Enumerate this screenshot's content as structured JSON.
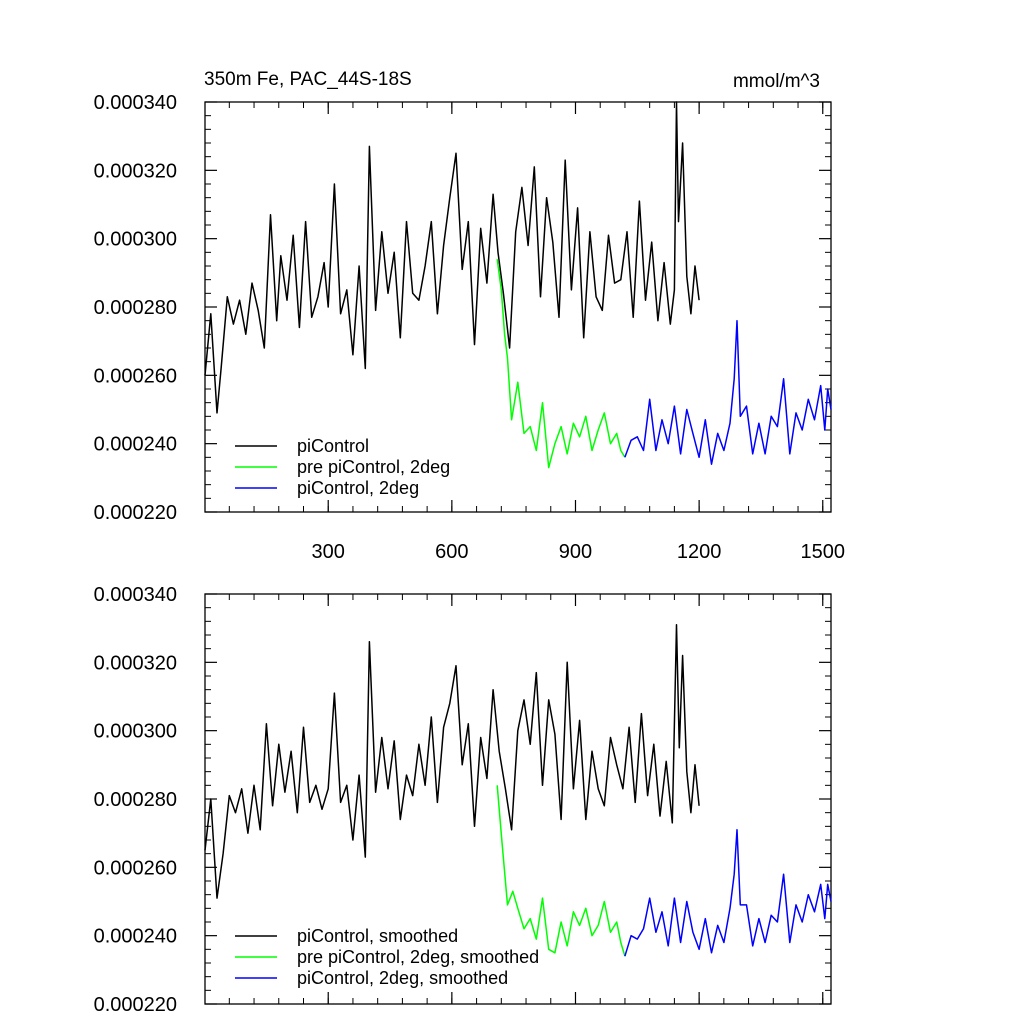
{
  "chart_data": [
    {
      "type": "line",
      "title": "350m Fe, PAC_44S-18S",
      "units": "mmol/m^3",
      "xlabel": "",
      "ylabel": "",
      "xlim": [
        1,
        1520
      ],
      "ylim": [
        0.00022,
        0.00034
      ],
      "x_ticks": [
        300,
        600,
        900,
        1200,
        1500
      ],
      "x_tick_labels": [
        "300",
        "600",
        "900",
        "1200",
        "1500"
      ],
      "y_ticks": [
        0.00022,
        0.00024,
        0.00026,
        0.00028,
        0.0003,
        0.00032,
        0.00034
      ],
      "y_tick_labels": [
        "0.000220",
        "0.000240",
        "0.000260",
        "0.000280",
        "0.000300",
        "0.000320",
        "0.000340"
      ],
      "legend_position": "bottom-left",
      "series": [
        {
          "name": "piControl",
          "color": "#000000",
          "x": [
            1,
            15,
            30,
            40,
            55,
            70,
            85,
            100,
            115,
            130,
            145,
            160,
            175,
            185,
            200,
            215,
            230,
            245,
            260,
            275,
            290,
            300,
            315,
            330,
            345,
            360,
            375,
            390,
            400,
            415,
            430,
            445,
            460,
            475,
            490,
            505,
            520,
            535,
            550,
            565,
            580,
            595,
            610,
            625,
            640,
            655,
            670,
            685,
            700,
            712,
            725,
            740,
            755,
            770,
            785,
            800,
            815,
            830,
            845,
            860,
            875,
            890,
            905,
            920,
            935,
            950,
            965,
            980,
            995,
            1010,
            1025,
            1040,
            1055,
            1070,
            1085,
            1100,
            1115,
            1130,
            1140,
            1145,
            1150,
            1160,
            1170,
            1180,
            1190,
            1200
          ],
          "y": [
            0.00026,
            0.000278,
            0.000249,
            0.000262,
            0.000283,
            0.000275,
            0.000282,
            0.000272,
            0.000287,
            0.000279,
            0.000268,
            0.000307,
            0.000276,
            0.000295,
            0.000282,
            0.000301,
            0.000274,
            0.000305,
            0.000277,
            0.000283,
            0.000293,
            0.00028,
            0.000316,
            0.000278,
            0.000285,
            0.000266,
            0.000292,
            0.000262,
            0.000327,
            0.000279,
            0.000302,
            0.000284,
            0.000296,
            0.000271,
            0.000305,
            0.000284,
            0.000282,
            0.000292,
            0.000305,
            0.000278,
            0.000298,
            0.000312,
            0.000325,
            0.000291,
            0.000305,
            0.000269,
            0.000303,
            0.000287,
            0.000313,
            0.000296,
            0.000284,
            0.000268,
            0.000302,
            0.000315,
            0.000298,
            0.000321,
            0.000283,
            0.000312,
            0.000299,
            0.000277,
            0.000323,
            0.000285,
            0.000309,
            0.000271,
            0.000302,
            0.000283,
            0.000279,
            0.000301,
            0.000287,
            0.000288,
            0.000302,
            0.000277,
            0.000311,
            0.000282,
            0.000299,
            0.000276,
            0.000293,
            0.000275,
            0.000285,
            0.00034,
            0.000305,
            0.000328,
            0.000289,
            0.000278,
            0.000292,
            0.000282
          ]
        },
        {
          "name": "pre piControl, 2deg",
          "color": "#00ff00",
          "x": [
            710,
            720,
            728,
            735,
            745,
            760,
            775,
            790,
            805,
            820,
            835,
            850,
            865,
            880,
            895,
            910,
            925,
            940,
            955,
            970,
            985,
            1000,
            1010,
            1020
          ],
          "y": [
            0.000294,
            0.000285,
            0.000272,
            0.000265,
            0.000247,
            0.000258,
            0.000243,
            0.000245,
            0.000238,
            0.000252,
            0.000233,
            0.00024,
            0.000245,
            0.000237,
            0.000246,
            0.000242,
            0.000248,
            0.000238,
            0.000244,
            0.000249,
            0.00024,
            0.000243,
            0.000238,
            0.000236
          ]
        },
        {
          "name": "piControl, 2deg",
          "color": "#0000ff",
          "x": [
            1020,
            1035,
            1050,
            1065,
            1080,
            1095,
            1110,
            1125,
            1140,
            1155,
            1170,
            1185,
            1200,
            1215,
            1230,
            1245,
            1260,
            1275,
            1285,
            1292,
            1300,
            1315,
            1330,
            1345,
            1360,
            1375,
            1390,
            1405,
            1420,
            1435,
            1450,
            1465,
            1480,
            1495,
            1505,
            1512,
            1520
          ],
          "y": [
            0.000236,
            0.000241,
            0.000242,
            0.000238,
            0.000253,
            0.000238,
            0.000247,
            0.00024,
            0.000251,
            0.000237,
            0.00025,
            0.000243,
            0.000236,
            0.000247,
            0.000234,
            0.000243,
            0.000238,
            0.000246,
            0.000259,
            0.000276,
            0.000248,
            0.000251,
            0.000237,
            0.000246,
            0.000237,
            0.000248,
            0.000245,
            0.000259,
            0.000237,
            0.000249,
            0.000244,
            0.000253,
            0.000247,
            0.000257,
            0.000244,
            0.000256,
            0.00025
          ]
        }
      ]
    },
    {
      "type": "line",
      "title": "",
      "xlabel": "",
      "ylabel": "",
      "xlim": [
        1,
        1520
      ],
      "ylim": [
        0.00022,
        0.00034
      ],
      "x_ticks": [
        300,
        600,
        900,
        1200,
        1500
      ],
      "x_tick_labels": [],
      "y_ticks": [
        0.00022,
        0.00024,
        0.00026,
        0.00028,
        0.0003,
        0.00032,
        0.00034
      ],
      "y_tick_labels": [
        "0.000220",
        "0.000240",
        "0.000260",
        "0.000280",
        "0.000300",
        "0.000320",
        "0.000340"
      ],
      "legend_position": "bottom-left",
      "series": [
        {
          "name": "piControl, smoothed",
          "color": "#000000",
          "x": [
            1,
            15,
            30,
            45,
            60,
            75,
            90,
            105,
            120,
            135,
            150,
            165,
            180,
            195,
            210,
            225,
            240,
            255,
            270,
            285,
            300,
            315,
            330,
            345,
            360,
            375,
            390,
            400,
            415,
            430,
            445,
            460,
            475,
            490,
            505,
            520,
            535,
            550,
            565,
            580,
            595,
            610,
            625,
            640,
            655,
            670,
            685,
            700,
            715,
            730,
            745,
            760,
            775,
            790,
            805,
            820,
            835,
            850,
            865,
            880,
            895,
            910,
            925,
            940,
            955,
            970,
            985,
            1000,
            1015,
            1030,
            1045,
            1060,
            1075,
            1090,
            1105,
            1120,
            1135,
            1145,
            1152,
            1160,
            1170,
            1180,
            1190,
            1200
          ],
          "y": [
            0.000265,
            0.00028,
            0.000251,
            0.000264,
            0.000281,
            0.000276,
            0.000283,
            0.00027,
            0.000284,
            0.000271,
            0.000302,
            0.000278,
            0.000296,
            0.000282,
            0.000294,
            0.000276,
            0.000301,
            0.000279,
            0.000284,
            0.000277,
            0.000283,
            0.000311,
            0.000279,
            0.000284,
            0.000268,
            0.000287,
            0.000263,
            0.000326,
            0.000282,
            0.000298,
            0.000283,
            0.000297,
            0.000274,
            0.000287,
            0.000281,
            0.000296,
            0.000284,
            0.000304,
            0.000279,
            0.000301,
            0.000308,
            0.000319,
            0.00029,
            0.000302,
            0.000272,
            0.000298,
            0.000286,
            0.000312,
            0.000294,
            0.000283,
            0.000271,
            0.0003,
            0.000309,
            0.000296,
            0.000317,
            0.000284,
            0.000309,
            0.000299,
            0.000274,
            0.00032,
            0.000283,
            0.000303,
            0.000274,
            0.000294,
            0.000283,
            0.000278,
            0.000298,
            0.00029,
            0.000283,
            0.000301,
            0.000279,
            0.000305,
            0.000281,
            0.000296,
            0.000275,
            0.000291,
            0.000273,
            0.000331,
            0.000295,
            0.000322,
            0.000288,
            0.000276,
            0.00029,
            0.000278
          ]
        },
        {
          "name": "pre piControl, 2deg, smoothed",
          "color": "#00ff00",
          "x": [
            710,
            722,
            735,
            748,
            760,
            775,
            790,
            805,
            820,
            835,
            850,
            865,
            880,
            895,
            910,
            925,
            940,
            955,
            970,
            985,
            1000,
            1010,
            1020
          ],
          "y": [
            0.000284,
            0.000267,
            0.000249,
            0.000253,
            0.000248,
            0.000242,
            0.000245,
            0.000239,
            0.000251,
            0.000236,
            0.000235,
            0.000244,
            0.000237,
            0.000247,
            0.000243,
            0.000248,
            0.00024,
            0.000243,
            0.00025,
            0.000241,
            0.000244,
            0.000238,
            0.000234
          ]
        },
        {
          "name": "piControl, 2deg, smoothed",
          "color": "#0000ff",
          "x": [
            1020,
            1035,
            1050,
            1065,
            1080,
            1095,
            1110,
            1125,
            1140,
            1155,
            1170,
            1185,
            1200,
            1215,
            1230,
            1245,
            1260,
            1275,
            1285,
            1292,
            1300,
            1315,
            1330,
            1345,
            1360,
            1375,
            1390,
            1405,
            1420,
            1435,
            1450,
            1465,
            1480,
            1495,
            1505,
            1512,
            1520
          ],
          "y": [
            0.000234,
            0.00024,
            0.000239,
            0.000242,
            0.000251,
            0.000241,
            0.000247,
            0.000237,
            0.000251,
            0.000238,
            0.00025,
            0.000241,
            0.000236,
            0.000245,
            0.000235,
            0.000243,
            0.000238,
            0.000248,
            0.000258,
            0.000271,
            0.000249,
            0.000249,
            0.000237,
            0.000245,
            0.000238,
            0.000246,
            0.000244,
            0.000258,
            0.000238,
            0.000249,
            0.000244,
            0.000252,
            0.000247,
            0.000255,
            0.000245,
            0.000255,
            0.00025
          ]
        }
      ]
    }
  ]
}
